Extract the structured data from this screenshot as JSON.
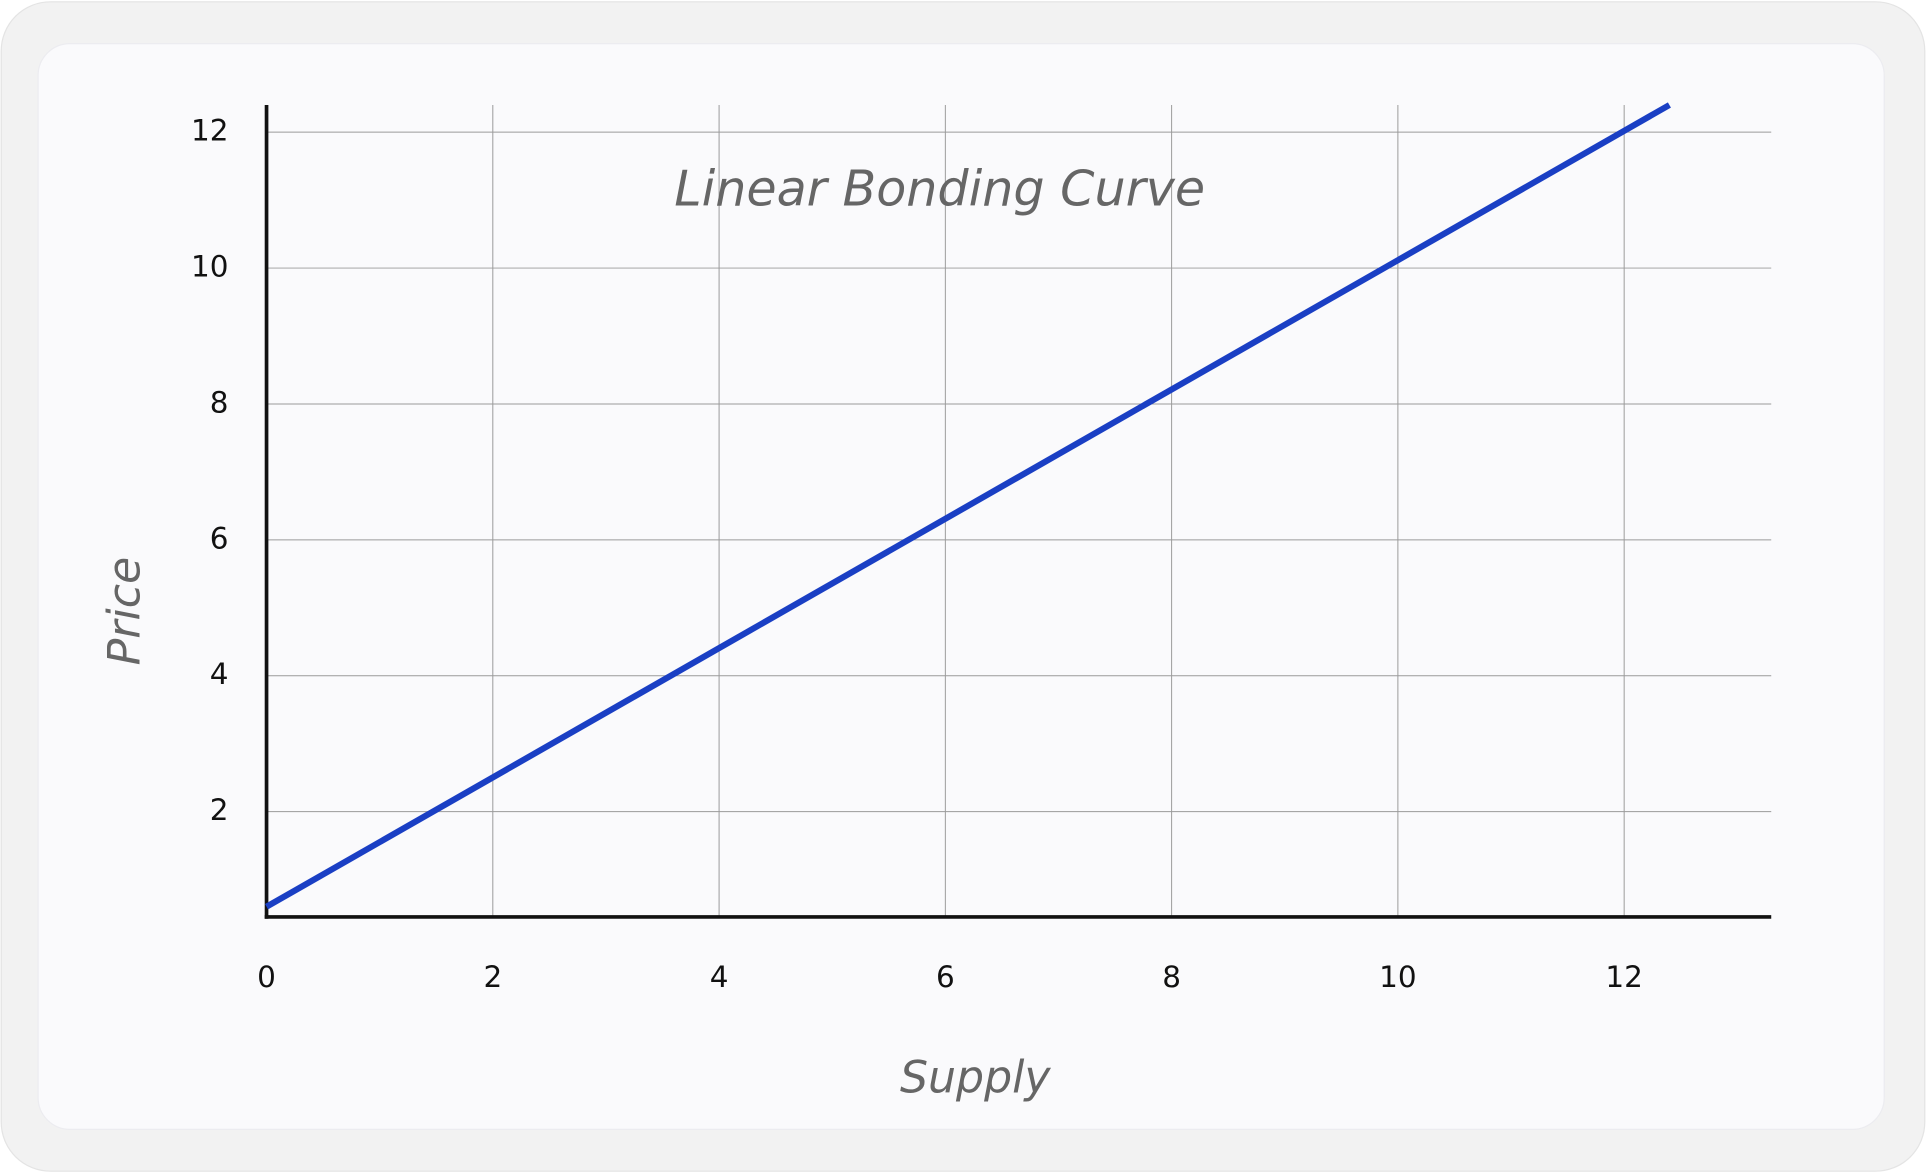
{
  "chart_data": {
    "type": "line",
    "title": "Linear Bonding Curve",
    "x_label": "Supply",
    "y_label": "Price",
    "x": [
      0,
      12.4
    ],
    "values": [
      0.6,
      12.4
    ],
    "color": "#1a3fc4",
    "xlim": [
      0,
      13.3
    ],
    "ylim": [
      0.45,
      12.4
    ],
    "xticks": [
      0,
      2,
      4,
      6,
      8,
      10,
      12
    ],
    "yticks": [
      2,
      4,
      6,
      8,
      10,
      12
    ],
    "grid": true
  }
}
